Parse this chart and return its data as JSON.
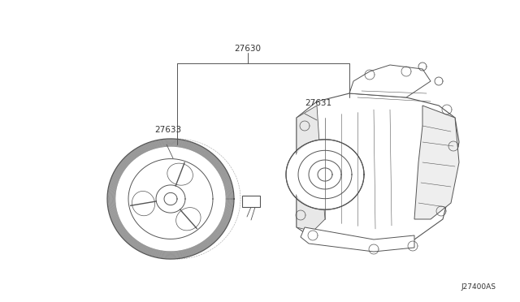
{
  "background_color": "#ffffff",
  "line_color": "#555555",
  "label_color": "#333333",
  "diagram_id": "J27400AS",
  "bg_rect_color": "#f2f2f2",
  "font_size_labels": 7.5,
  "font_size_id": 6.5,
  "label_27630": "27630",
  "label_27631": "27631",
  "label_27633": "27633"
}
